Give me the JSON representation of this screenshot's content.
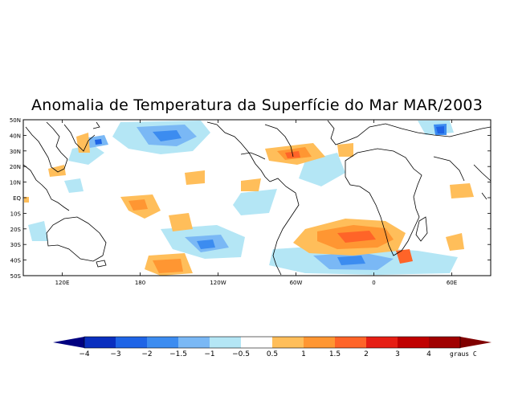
{
  "title": "Anomalia de Temperatura da Superfície do Mar MAR/2003",
  "latitude_labels": [
    "50N",
    "40N",
    "30N",
    "20N",
    "10N",
    "EQ",
    "10S",
    "20S",
    "30S",
    "40S",
    "50S"
  ],
  "longitude_labels": [
    "120E",
    "180",
    "120W",
    "60W",
    "0",
    "60E"
  ],
  "colorbar": {
    "unit_label": "graus C",
    "tick_labels": [
      "−4",
      "−3",
      "−2",
      "−1.5",
      "−1",
      "−0.5",
      "0.5",
      "1",
      "1.5",
      "2",
      "3",
      "4"
    ],
    "colors": [
      "#000080",
      "#0a2fbf",
      "#1e64e6",
      "#3c8cf0",
      "#7ab8f5",
      "#b4e6f5",
      "#ffffff",
      "#ffbe5a",
      "#ff9632",
      "#ff6428",
      "#e61e14",
      "#c00000",
      "#a00000",
      "#800000"
    ]
  }
}
